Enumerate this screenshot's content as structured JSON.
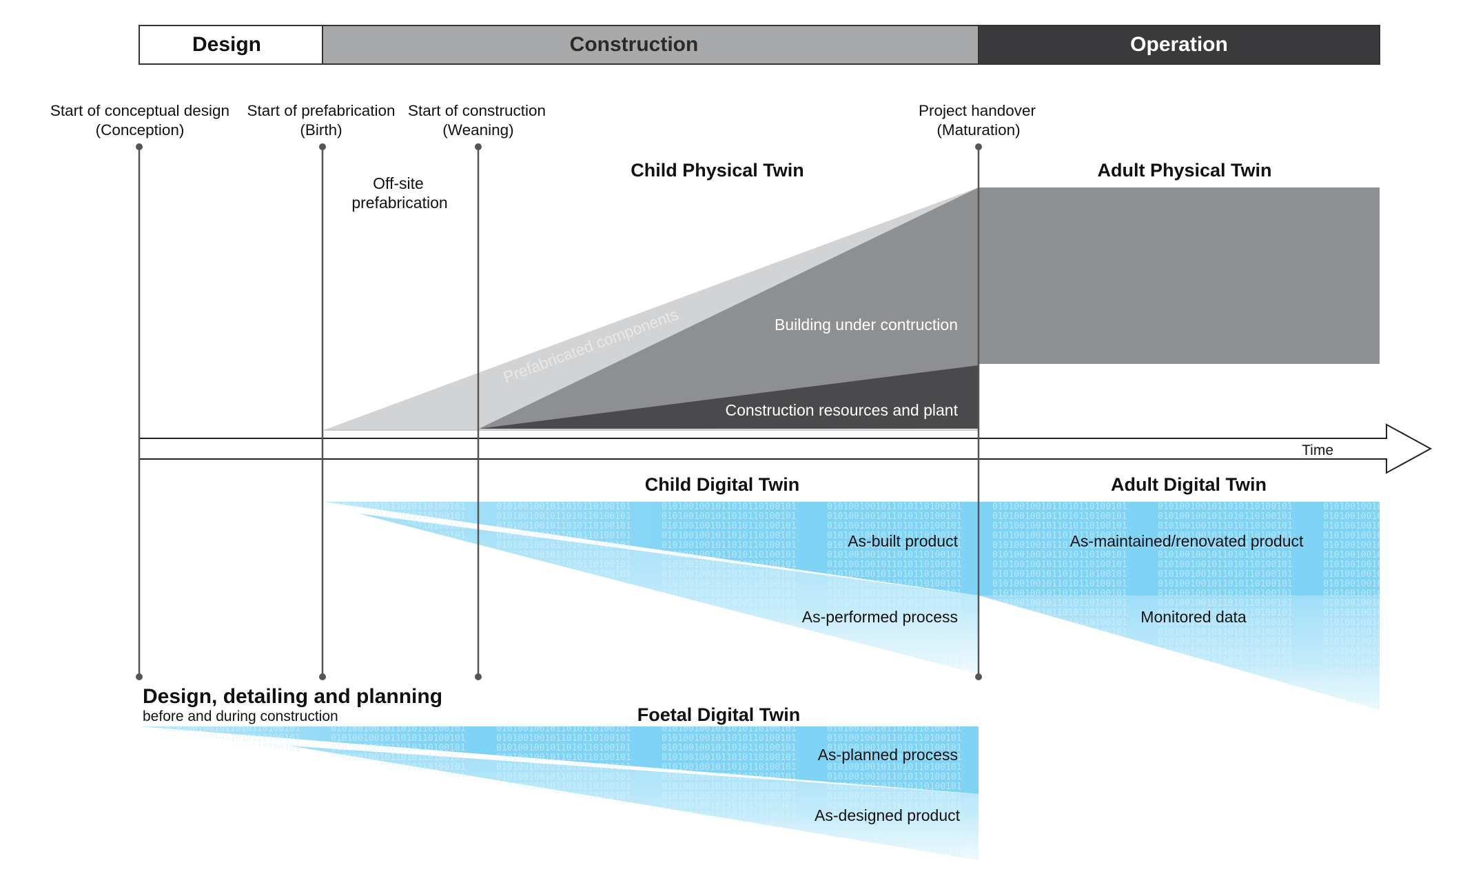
{
  "phases": {
    "design": "Design",
    "construction": "Construction",
    "operation": "Operation"
  },
  "milestones": [
    {
      "line1": "Start of conceptual design",
      "line2": "(Conception)"
    },
    {
      "line1": "Start of prefabrication",
      "line2": "(Birth)"
    },
    {
      "line1": "Start of construction",
      "line2": "(Weaning)"
    },
    {
      "line1": "Project handover",
      "line2": "(Maturation)"
    }
  ],
  "physical": {
    "offsite_line1": "Off-site",
    "offsite_line2": "prefabrication",
    "child_title": "Child Physical Twin",
    "adult_title": "Adult Physical Twin",
    "prefab_components": "Prefabricated components",
    "building": "Building under contruction",
    "resources": "Construction resources and plant"
  },
  "timeline": {
    "label": "Time"
  },
  "digital": {
    "child_title": "Child Digital Twin",
    "adult_title": "Adult Digital Twin",
    "as_built": "As-built product",
    "as_maintained": "As-maintained/renovated product",
    "as_performed": "As-performed process",
    "monitored": "Monitored data"
  },
  "design_section": {
    "title": "Design, detailing and planning",
    "subtitle": "before and during construction"
  },
  "foetal": {
    "title": "Foetal Digital Twin",
    "as_planned": "As-planned process",
    "as_designed": "As-designed product"
  },
  "colors": {
    "phase_construction": "#a8a9ab",
    "phase_operation": "#3a3a3c",
    "prefab_light": "#d2d3d5",
    "building_mid": "#8e8f91",
    "resources_dark": "#4a4a4c",
    "digital_blue": "#7fd3f5",
    "digital_blue_light": "#bfe9fb"
  }
}
